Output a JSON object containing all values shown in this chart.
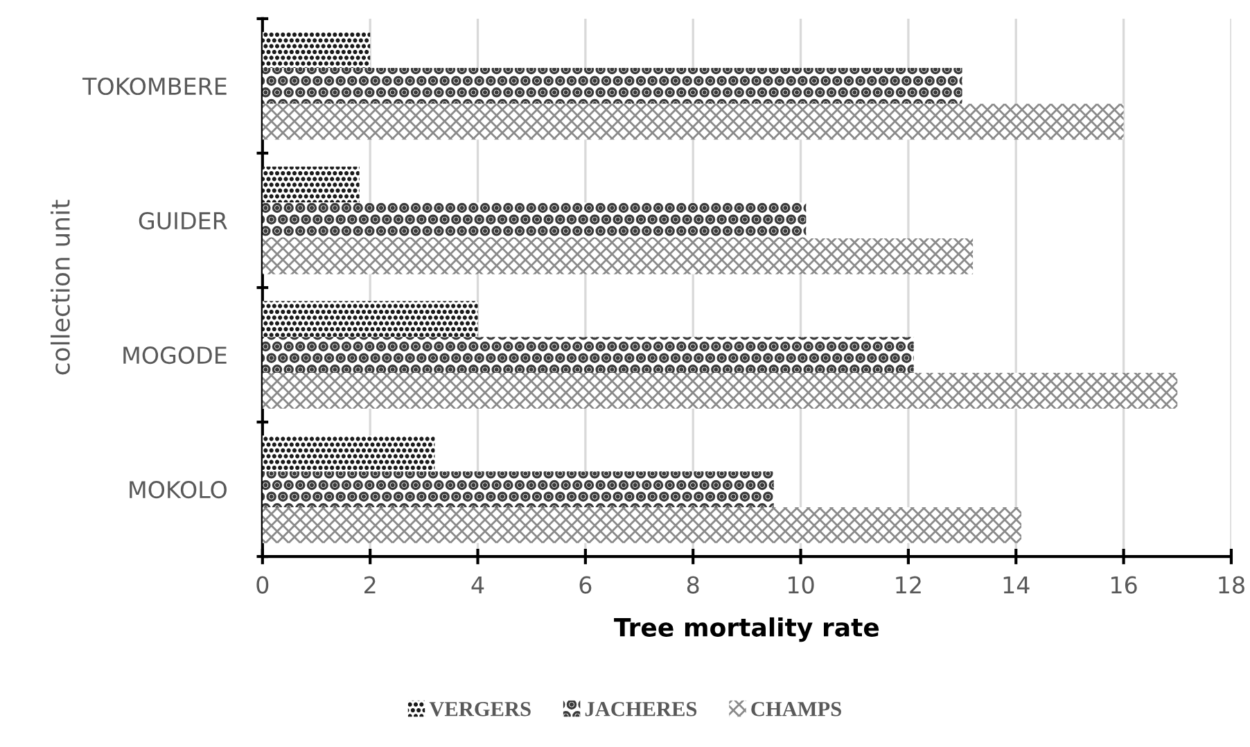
{
  "chart_data": {
    "type": "bar",
    "orientation": "horizontal",
    "xlabel": "Tree mortality rate",
    "ylabel": "collection unit",
    "categories": [
      "TOKOMBERE",
      "GUIDER",
      "MOGODE",
      "MOKOLO"
    ],
    "series": [
      {
        "name": "VERGERS",
        "color": "#1a1a1a",
        "values": [
          2.0,
          1.8,
          4.0,
          3.2
        ]
      },
      {
        "name": "JACHERES",
        "color": "#3a3a3a",
        "values": [
          13.0,
          10.1,
          12.1,
          9.5
        ]
      },
      {
        "name": "CHAMPS",
        "color": "#8a8a8a",
        "values": [
          16.0,
          13.2,
          17.0,
          14.1
        ]
      }
    ],
    "xlim": [
      0,
      18
    ],
    "xticks": [
      0,
      2,
      4,
      6,
      8,
      10,
      12,
      14,
      16,
      18
    ],
    "grid": "x",
    "legend": "bottom"
  }
}
